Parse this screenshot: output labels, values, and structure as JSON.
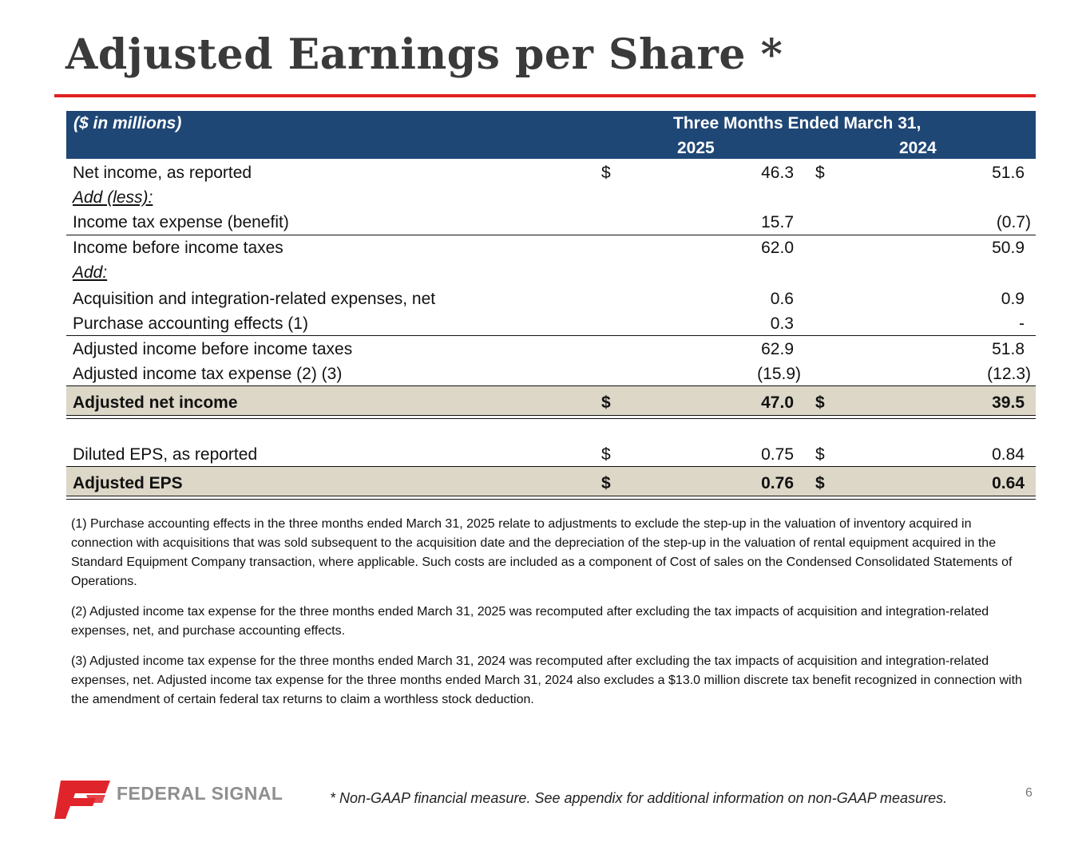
{
  "title": "Adjusted Earnings per Share *",
  "table": {
    "unit": "($ in millions)",
    "period": "Three Months Ended March 31,",
    "year1": "2025",
    "year2": "2024",
    "rows": [
      {
        "label": "Net income, as reported",
        "d1": "$",
        "v1": "46.3",
        "d2": "$",
        "v2": "51.6"
      },
      {
        "label": "Add (less):"
      },
      {
        "label": "Income tax expense (benefit)",
        "v1": "15.7",
        "v2": "(0.7)"
      },
      {
        "label": "Income before income taxes",
        "v1": "62.0",
        "v2": "50.9"
      },
      {
        "label": "Add:"
      },
      {
        "label": "Acquisition and integration-related expenses, net",
        "v1": "0.6",
        "v2": "0.9"
      },
      {
        "label": "Purchase accounting effects (1)",
        "v1": "0.3",
        "v2": "-"
      },
      {
        "label": "Adjusted income before income taxes",
        "v1": "62.9",
        "v2": "51.8"
      },
      {
        "label": "Adjusted income tax expense (2) (3)",
        "v1": "(15.9)",
        "v2": "(12.3)"
      },
      {
        "label": "Adjusted net income",
        "d1": "$",
        "v1": "47.0",
        "d2": "$",
        "v2": "39.5"
      },
      {
        "label": "Diluted EPS, as reported",
        "d1": "$",
        "v1": "0.75",
        "d2": "$",
        "v2": "0.84"
      },
      {
        "label": "Adjusted EPS",
        "d1": "$",
        "v1": "0.76",
        "d2": "$",
        "v2": "0.64"
      }
    ]
  },
  "footnotes": [
    "(1) Purchase accounting effects in the three months ended March 31, 2025 relate to adjustments to exclude the step-up in the valuation of inventory acquired in connection with acquisitions that was sold subsequent to the acquisition date and the depreciation of the step-up in the valuation of rental equipment acquired in the Standard Equipment Company transaction, where applicable. Such costs are included as a component of Cost of sales on the Condensed Consolidated Statements of Operations.",
    "(2) Adjusted income tax expense for the three months ended March 31, 2025 was recomputed after excluding the tax impacts of acquisition and integration-related expenses, net, and purchase accounting effects.",
    "(3) Adjusted income tax expense for the three months ended March 31, 2024 was recomputed after excluding the tax impacts of acquisition and integration-related expenses, net. Adjusted income tax expense for the three months ended March 31, 2024 also excludes a $13.0 million discrete tax benefit recognized in connection with the amendment of certain federal tax returns to claim a worthless stock deduction."
  ],
  "footer": {
    "logo_text": "FEDERAL SIGNAL",
    "disclaimer": "* Non-GAAP financial measure. See appendix for additional information on non-GAAP measures.",
    "page_number": "6"
  },
  "colors": {
    "header_bg": "#1f4776",
    "title_rule": "#e02020",
    "highlight_row": "#dcd7c7",
    "logo_red": "#e0242b"
  }
}
